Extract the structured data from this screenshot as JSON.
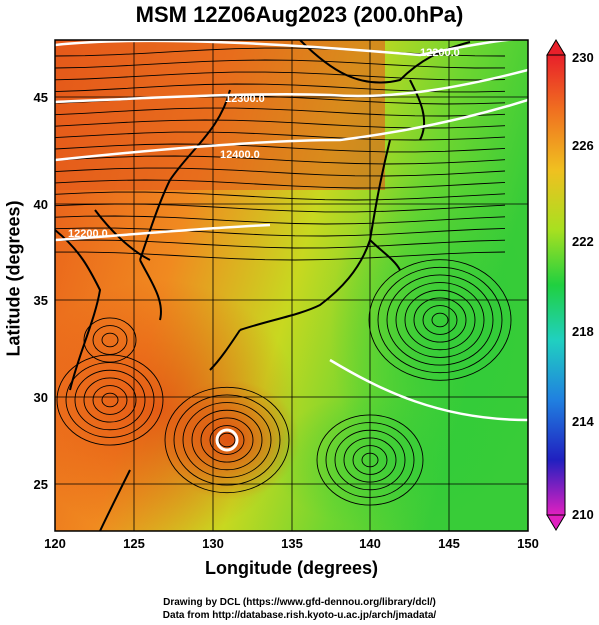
{
  "title": "MSM 12Z06Aug2023 (200.0hPa)",
  "x_axis": {
    "label": "Longitude (degrees)",
    "ticks": [
      "120",
      "125",
      "130",
      "135",
      "140",
      "145",
      "150"
    ]
  },
  "y_axis": {
    "label": "Latitude  (degrees)",
    "ticks": [
      "25",
      "30",
      "35",
      "40",
      "45"
    ]
  },
  "colorbar": {
    "ticks": [
      "230",
      "226",
      "222",
      "218",
      "214",
      "210"
    ]
  },
  "contour_labels": [
    "12200.0",
    "12300.0",
    "12400.0",
    "12200.0"
  ],
  "credits": {
    "line1": "Drawing by DCL (https://www.gfd-dennou.org/library/dcl/)",
    "line2": "Data from http://database.rish.kyoto-u.ac.jp/arch/jmadata/"
  },
  "colors": {
    "warm": "#e85a1a",
    "mid": "#d8e020",
    "cool": "#30d030",
    "accent_contour": "#ffffff"
  }
}
